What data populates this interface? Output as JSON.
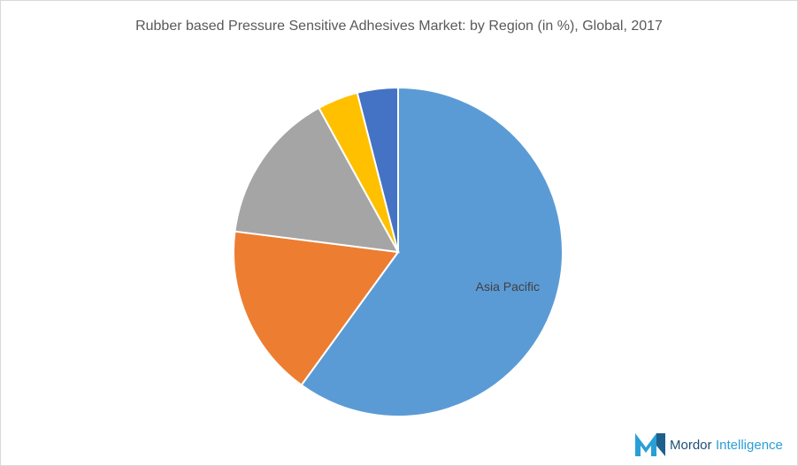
{
  "chart_data": {
    "type": "pie",
    "title": "Rubber based Pressure Sensitive Adhesives Market: by Region (in %), Global, 2017",
    "categories": [
      "Asia Pacific",
      null,
      null,
      null,
      null
    ],
    "values": [
      60,
      17,
      15,
      4,
      4
    ],
    "colors": [
      "#5b9bd5",
      "#ed7d31",
      "#a5a5a5",
      "#ffc000",
      "#4472c4"
    ]
  },
  "logo": {
    "brand": "Mordor",
    "suffix": "Intelligence"
  }
}
